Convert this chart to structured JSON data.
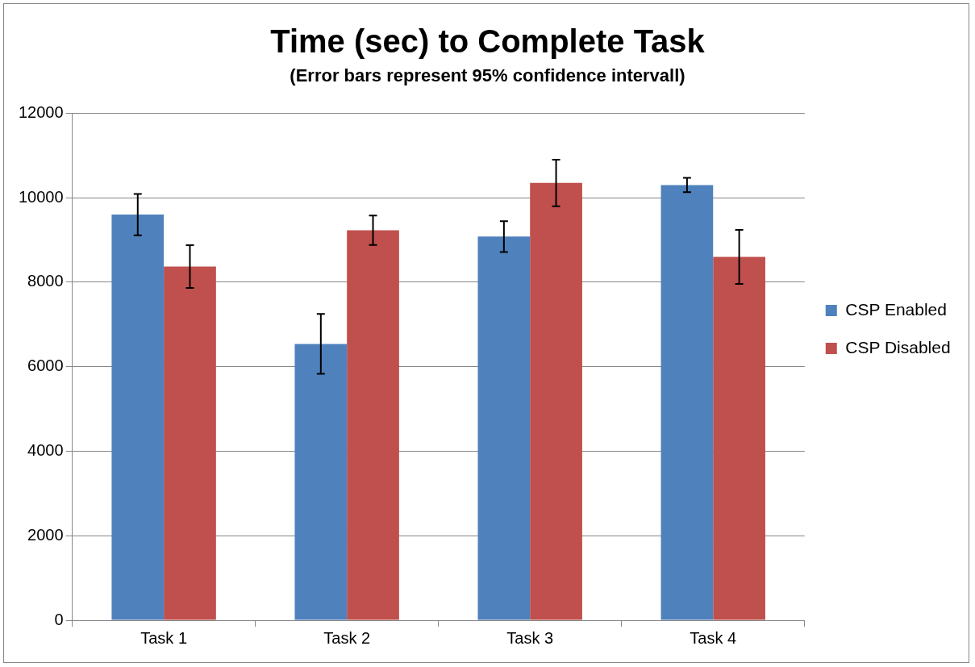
{
  "chart_data": {
    "type": "bar",
    "title": "Time (sec) to Complete Task",
    "subtitle": "(Error bars represent 95% confidence intervall)",
    "categories": [
      "Task 1",
      "Task 2",
      "Task 3",
      "Task 4"
    ],
    "series": [
      {
        "name": "CSP Enabled",
        "color": "#4f81bd",
        "values": [
          9600,
          6540,
          9080,
          10300
        ],
        "errors": [
          490,
          710,
          365,
          170
        ]
      },
      {
        "name": "CSP Disabled",
        "color": "#c0504d",
        "values": [
          8370,
          9230,
          10350,
          8600
        ],
        "errors": [
          505,
          350,
          550,
          640
        ]
      }
    ],
    "ylim": [
      0,
      12000
    ],
    "yticks": [
      0,
      2000,
      4000,
      6000,
      8000,
      10000,
      12000
    ],
    "grid": "y",
    "legend": "right"
  }
}
